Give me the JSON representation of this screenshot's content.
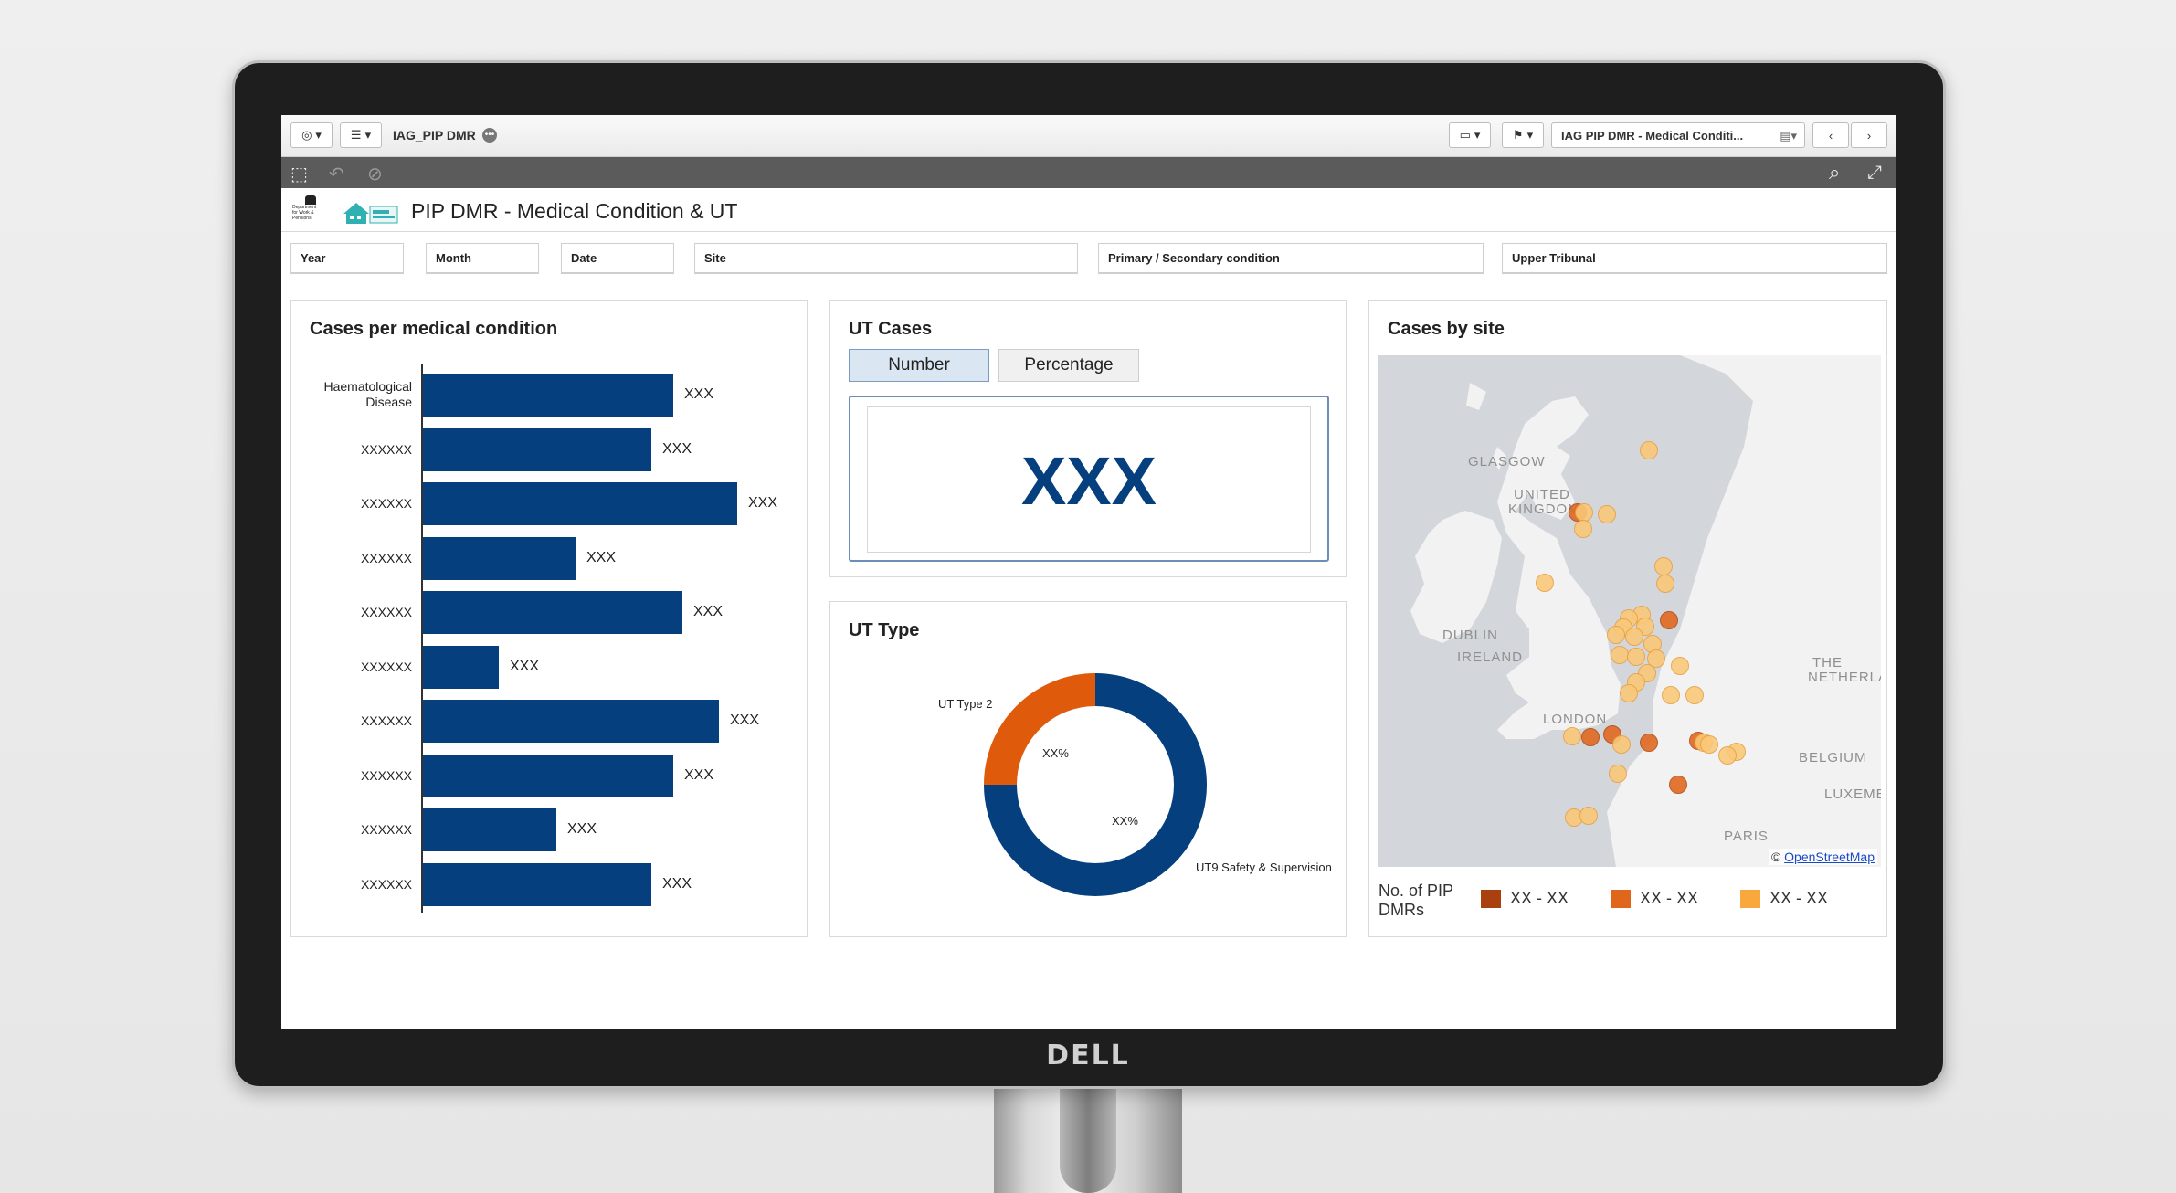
{
  "monitor": {
    "brand": "DELL"
  },
  "toolbar": {
    "app_name": "IAG_PIP DMR",
    "sheet_select": "IAG PIP DMR - Medical Conditi..."
  },
  "header": {
    "title": "PIP DMR - Medical Condition & UT"
  },
  "filters": [
    "Year",
    "Month",
    "Date",
    "Site",
    "Primary / Secondary condition",
    "Upper Tribunal"
  ],
  "panels": {
    "cases_condition": {
      "title": "Cases per medical condition"
    },
    "ut_cases": {
      "title": "UT Cases",
      "toggle": [
        "Number",
        "Percentage"
      ],
      "selected": "Number",
      "value": "XXX"
    },
    "ut_type": {
      "title": "UT Type"
    },
    "cases_site": {
      "title": "Cases by site"
    }
  },
  "map": {
    "places": [
      "GLASGOW",
      "UNITED",
      "KINGDOM",
      "DUBLIN",
      "IRELAND",
      "LONDON",
      "THE",
      "NETHERLA",
      "BELGIUM",
      "LUXEMB",
      "PARIS"
    ],
    "attribution_prefix": "©",
    "attribution_link": "OpenStreetMap",
    "legend_title": "No. of PIP DMRs",
    "legend": [
      {
        "label": "XX - XX",
        "color": "#a8400f"
      },
      {
        "label": "XX - XX",
        "color": "#e0661c"
      },
      {
        "label": "XX - XX",
        "color": "#f8a83c"
      }
    ]
  },
  "chart_data": [
    {
      "type": "bar",
      "title": "Cases per medical condition",
      "orientation": "horizontal",
      "categories": [
        "Haematological Disease",
        "XXXXXX",
        "XXXXXX",
        "XXXXXX",
        "XXXXXX",
        "XXXXXX",
        "XXXXXX",
        "XXXXXX",
        "XXXXXX",
        "XXXXXX"
      ],
      "values": [
        274,
        250,
        344,
        167,
        284,
        83,
        324,
        274,
        146,
        250
      ],
      "data_labels": [
        "XXX",
        "XXX",
        "XXX",
        "XXX",
        "XXX",
        "XXX",
        "XXX",
        "XXX",
        "XXX",
        "XXX"
      ],
      "xlim": [
        0,
        350
      ],
      "color": "#053f7d"
    },
    {
      "type": "pie",
      "title": "UT Type",
      "donut": true,
      "slices": [
        {
          "name": "UT9 Safety & Supervision",
          "value": 75,
          "label": "XX%",
          "color": "#053f7d"
        },
        {
          "name": "UT Type 2",
          "value": 25,
          "label": "XX%",
          "color": "#e05a0c"
        }
      ]
    }
  ]
}
